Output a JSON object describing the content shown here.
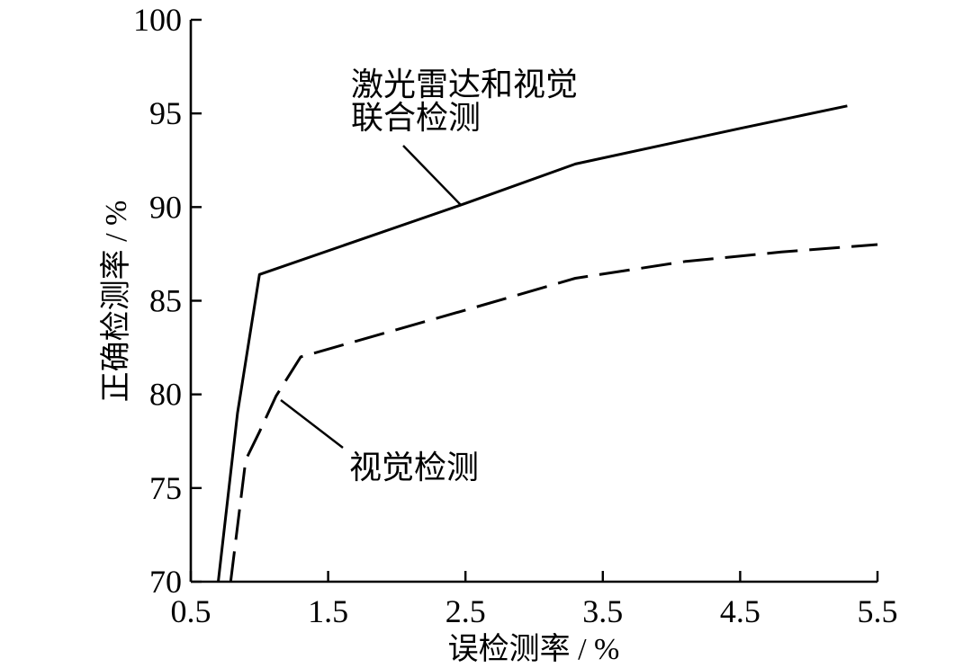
{
  "chart_data": {
    "type": "line",
    "xlabel": "误检测率 / %",
    "ylabel": "正确检测率 / %",
    "xlim": [
      0.5,
      5.5
    ],
    "ylim": [
      70,
      100
    ],
    "xticks": [
      0.5,
      1.5,
      2.5,
      3.5,
      4.5,
      5.5
    ],
    "yticks": [
      70,
      75,
      80,
      85,
      90,
      95,
      100
    ],
    "grid": false,
    "legend": "none",
    "series": [
      {
        "name": "激光雷达和视觉联合检测",
        "line_style": "solid",
        "color": "#000000",
        "x": [
          0.7,
          0.84,
          1.0,
          2.5,
          3.3,
          4.5,
          5.28
        ],
        "y": [
          70.0,
          79.0,
          86.4,
          90.2,
          92.3,
          94.2,
          95.4
        ]
      },
      {
        "name": "视觉检测",
        "line_style": "dashed",
        "color": "#000000",
        "x": [
          0.79,
          0.9,
          1.0,
          1.12,
          1.3,
          2.5,
          3.3,
          4.1,
          4.8,
          5.5
        ],
        "y": [
          70.0,
          76.5,
          78.0,
          79.9,
          82.0,
          84.5,
          86.2,
          87.1,
          87.6,
          88.0
        ]
      }
    ]
  }
}
